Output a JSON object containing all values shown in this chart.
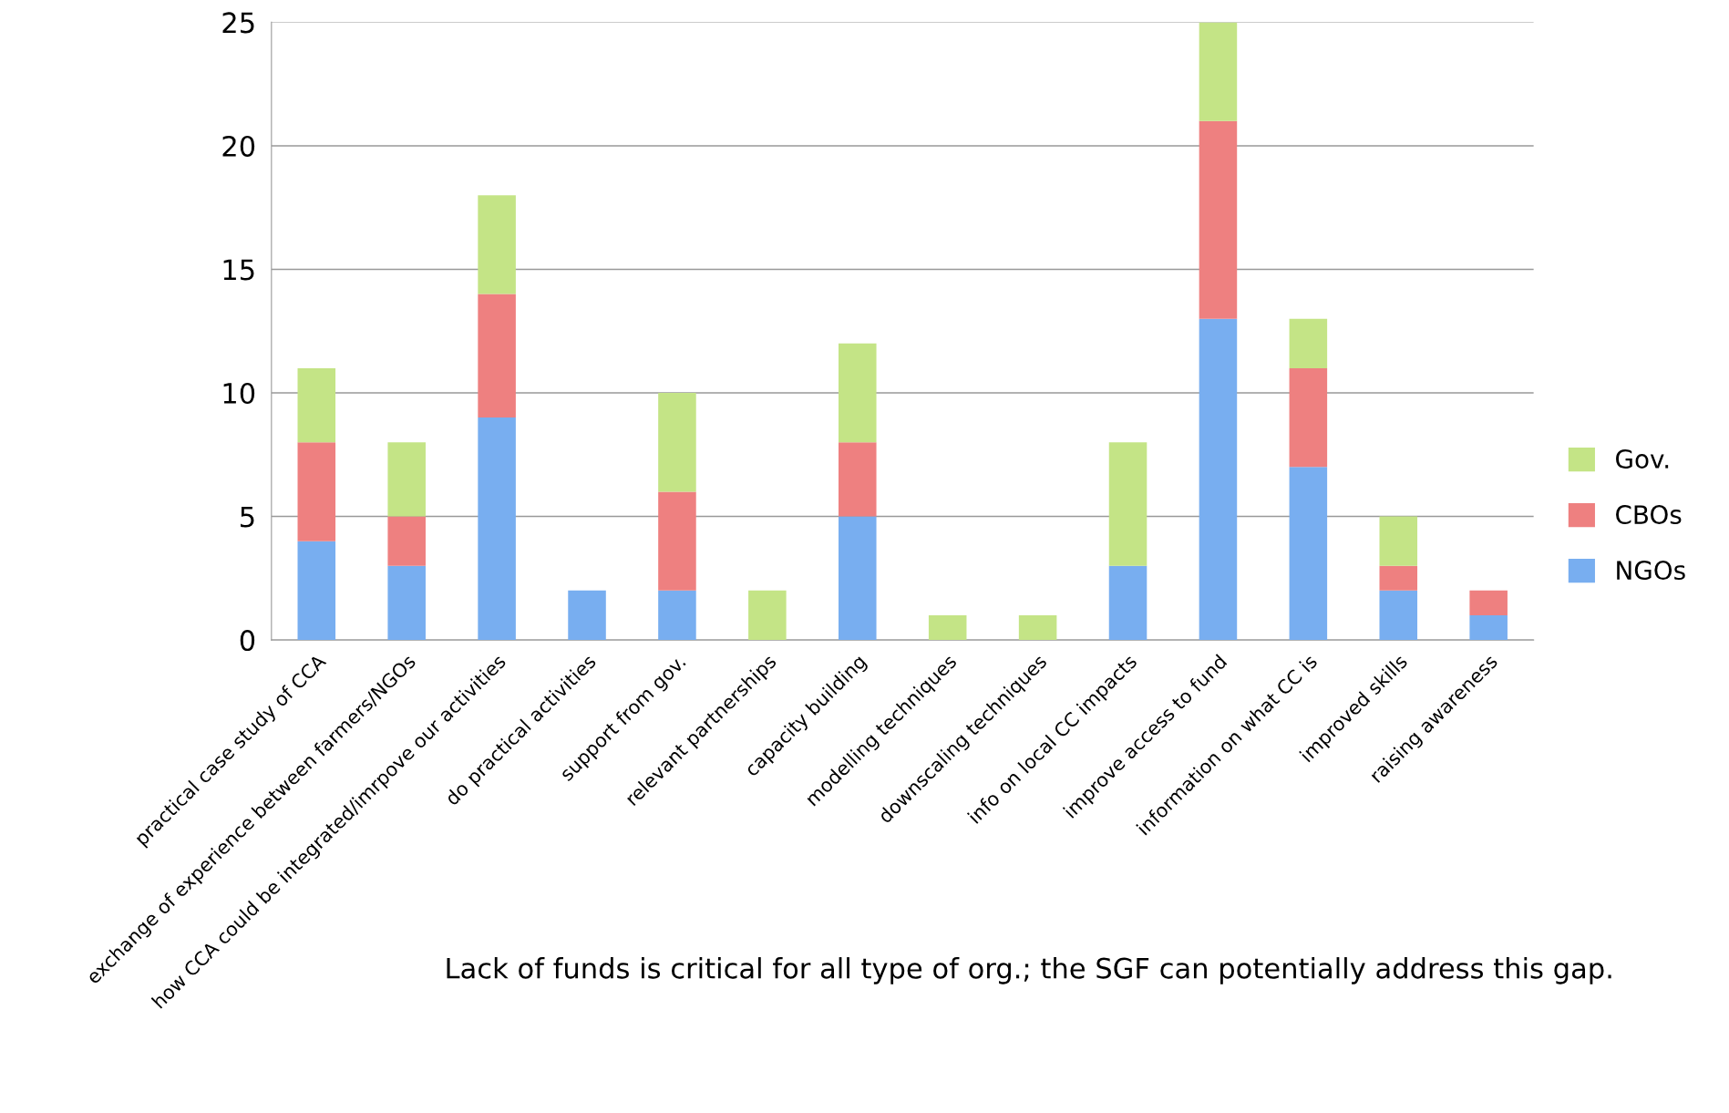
{
  "chart_data": {
    "type": "bar",
    "stacked": true,
    "categories": [
      "practical case study of CCA",
      "exchange of experience between farmers/NGOs",
      "how CCA could be integrated/imrpove our activities",
      "do practical activities",
      "support from gov.",
      "relevant partnerships",
      "capacity building",
      "modelling techniques",
      "downscaling techniques",
      "info on local CC impacts",
      "improve access to fund",
      "information on what CC is",
      "improved skills",
      "raising awareness"
    ],
    "series": [
      {
        "name": "NGOs",
        "color": "#78aef0",
        "values": [
          4,
          3,
          9,
          2,
          2,
          0,
          5,
          0,
          0,
          3,
          13,
          7,
          2,
          1
        ]
      },
      {
        "name": "CBOs",
        "color": "#ee8080",
        "values": [
          4,
          2,
          5,
          0,
          4,
          0,
          3,
          0,
          0,
          0,
          8,
          4,
          1,
          1
        ]
      },
      {
        "name": "Gov.",
        "color": "#c4e486",
        "values": [
          3,
          3,
          4,
          0,
          4,
          2,
          4,
          1,
          1,
          5,
          4,
          2,
          2,
          0
        ]
      }
    ],
    "ylim": [
      0,
      25
    ],
    "yticks": [
      0,
      5,
      10,
      15,
      20,
      25
    ],
    "grid": "y",
    "legend": "right",
    "annotations": [
      "Lack of funds is critical for all type of org.; the SGF can potentially address this gap."
    ]
  }
}
